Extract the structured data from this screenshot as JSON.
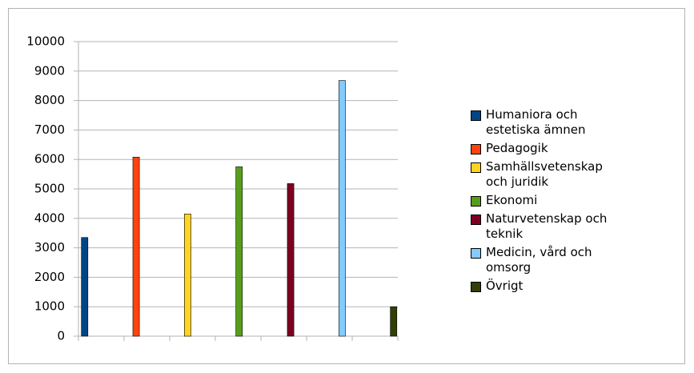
{
  "chart_data": {
    "type": "bar",
    "ylim": [
      0,
      10000
    ],
    "yticks": [
      0,
      1000,
      2000,
      3000,
      4000,
      5000,
      6000,
      7000,
      8000,
      9000,
      10000
    ],
    "grid": true,
    "legend": "right",
    "series": [
      {
        "name": "Humaniora och estetiska ämnen",
        "color": "#004586",
        "values": [
          3350
        ]
      },
      {
        "name": "Pedagogik",
        "color": "#ff420e",
        "values": [
          6080
        ]
      },
      {
        "name": "Samhällsvetenskap och juridik",
        "color": "#ffd320",
        "values": [
          4150
        ]
      },
      {
        "name": "Ekonomi",
        "color": "#579d1c",
        "values": [
          5750
        ]
      },
      {
        "name": "Naturvetenskap och teknik",
        "color": "#7e0021",
        "values": [
          5180
        ]
      },
      {
        "name": "Medicin, vård och omsorg",
        "color": "#83caff",
        "values": [
          8680
        ]
      },
      {
        "name": "Övrigt",
        "color": "#314004",
        "values": [
          1000
        ]
      }
    ]
  }
}
